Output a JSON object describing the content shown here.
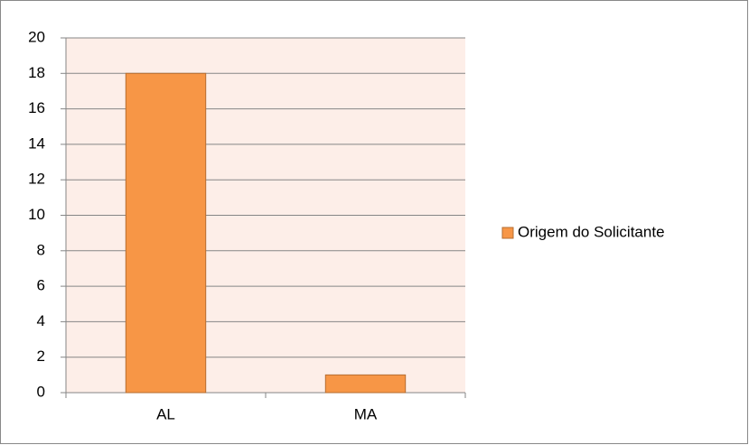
{
  "chart_data": {
    "type": "bar",
    "categories": [
      "AL",
      "MA"
    ],
    "series": [
      {
        "name": "Origem do Solicitante",
        "color": "#f79646",
        "values": [
          18,
          1
        ]
      }
    ],
    "ylim": [
      0,
      20
    ],
    "yticks": [
      0,
      2,
      4,
      6,
      8,
      10,
      12,
      14,
      16,
      18,
      20
    ],
    "grid": true,
    "legend": "right"
  }
}
